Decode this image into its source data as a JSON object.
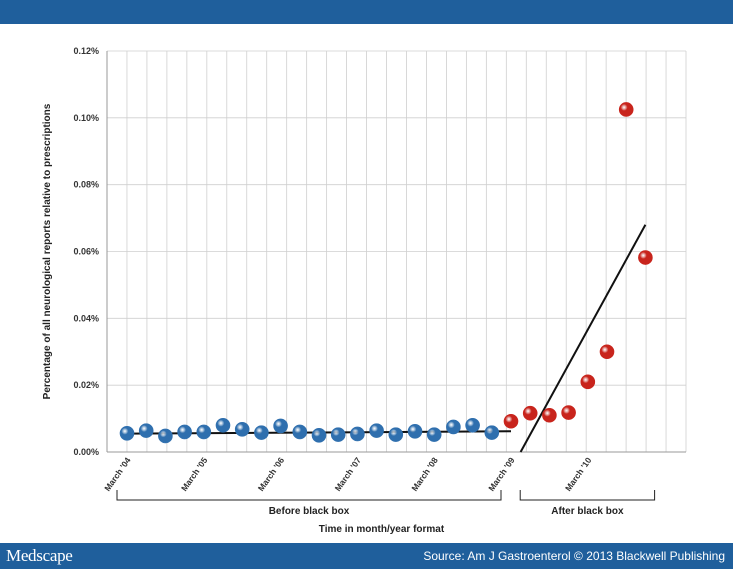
{
  "colors": {
    "banner": "#1f5f9c",
    "before_point": "#2f6fae",
    "after_point": "#c8241c",
    "grid": "#cfcfcf",
    "trend": "#111111"
  },
  "footer": {
    "brand": "Medscape",
    "source": "Source: Am J Gastroenterol © 2013 Blackwell Publishing"
  },
  "chart_data": {
    "type": "scatter",
    "ylabel": "Percentage of all neurological reports relative to prescriptions",
    "xlabel": "Time in month/year format",
    "ylim": [
      0,
      0.12
    ],
    "y_ticks": [
      "0.00%",
      "0.02%",
      "0.04%",
      "0.06%",
      "0.08%",
      "0.10%",
      "0.12%"
    ],
    "y_tick_values": [
      0,
      0.02,
      0.04,
      0.06,
      0.08,
      0.1,
      0.12
    ],
    "x_tick_labels": [
      {
        "label": "March '04",
        "index": 0
      },
      {
        "label": "March '05",
        "index": 4
      },
      {
        "label": "March '06",
        "index": 8
      },
      {
        "label": "March '07",
        "index": 12
      },
      {
        "label": "March '08",
        "index": 16
      },
      {
        "label": "March '09",
        "index": 20
      },
      {
        "label": "March '10",
        "index": 24
      }
    ],
    "n_grid_columns": 29,
    "series": [
      {
        "name": "Before black box",
        "color": "#2f6fae",
        "x": [
          0,
          1,
          2,
          3,
          4,
          5,
          6,
          7,
          8,
          9,
          10,
          11,
          12,
          13,
          14,
          15,
          16,
          17,
          18,
          19
        ],
        "values": [
          0.0056,
          0.0064,
          0.0048,
          0.006,
          0.006,
          0.008,
          0.0068,
          0.0058,
          0.0078,
          0.006,
          0.005,
          0.0052,
          0.0054,
          0.0064,
          0.0052,
          0.0062,
          0.0052,
          0.0075,
          0.008,
          0.0058
        ]
      },
      {
        "name": "After black box",
        "color": "#c8241c",
        "x": [
          20,
          21,
          22,
          23,
          24,
          25,
          26,
          27
        ],
        "values": [
          0.0092,
          0.0116,
          0.011,
          0.0118,
          0.021,
          0.03,
          0.1025,
          0.0582
        ]
      }
    ],
    "trendlines": [
      {
        "name": "before-trend",
        "x": [
          0,
          20
        ],
        "y": [
          0.0055,
          0.0062
        ]
      },
      {
        "name": "after-trend",
        "x": [
          20.5,
          27.0
        ],
        "y": [
          0.0,
          0.068
        ]
      }
    ],
    "brackets": [
      {
        "label": "Before black box",
        "from": 0,
        "to": 20
      },
      {
        "label": "After black box",
        "from": 21,
        "to": 28
      }
    ]
  }
}
